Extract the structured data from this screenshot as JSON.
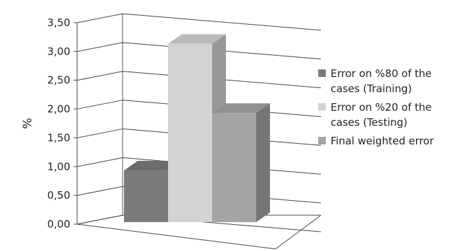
{
  "chart_data": {
    "type": "bar",
    "title": "",
    "xlabel": "",
    "ylabel": "%",
    "ylim": [
      0,
      3.5
    ],
    "y_ticks": [
      "0,00",
      "0,50",
      "1,00",
      "1,50",
      "2,00",
      "2,50",
      "3,00",
      "3,50"
    ],
    "grid": true,
    "three_d": true,
    "legend_position": "right",
    "series": [
      {
        "name_lines": [
          "Error on %80 of the",
          "cases (Training)"
        ],
        "value": 1.1,
        "color": "#7b7b7b"
      },
      {
        "name_lines": [
          "Error on %20 of the",
          "cases (Testing)"
        ],
        "value": 3.3,
        "color": "#d3d3d3"
      },
      {
        "name_lines": [
          "Final weighted error"
        ],
        "value": 2.1,
        "color": "#a4a4a4"
      }
    ]
  }
}
